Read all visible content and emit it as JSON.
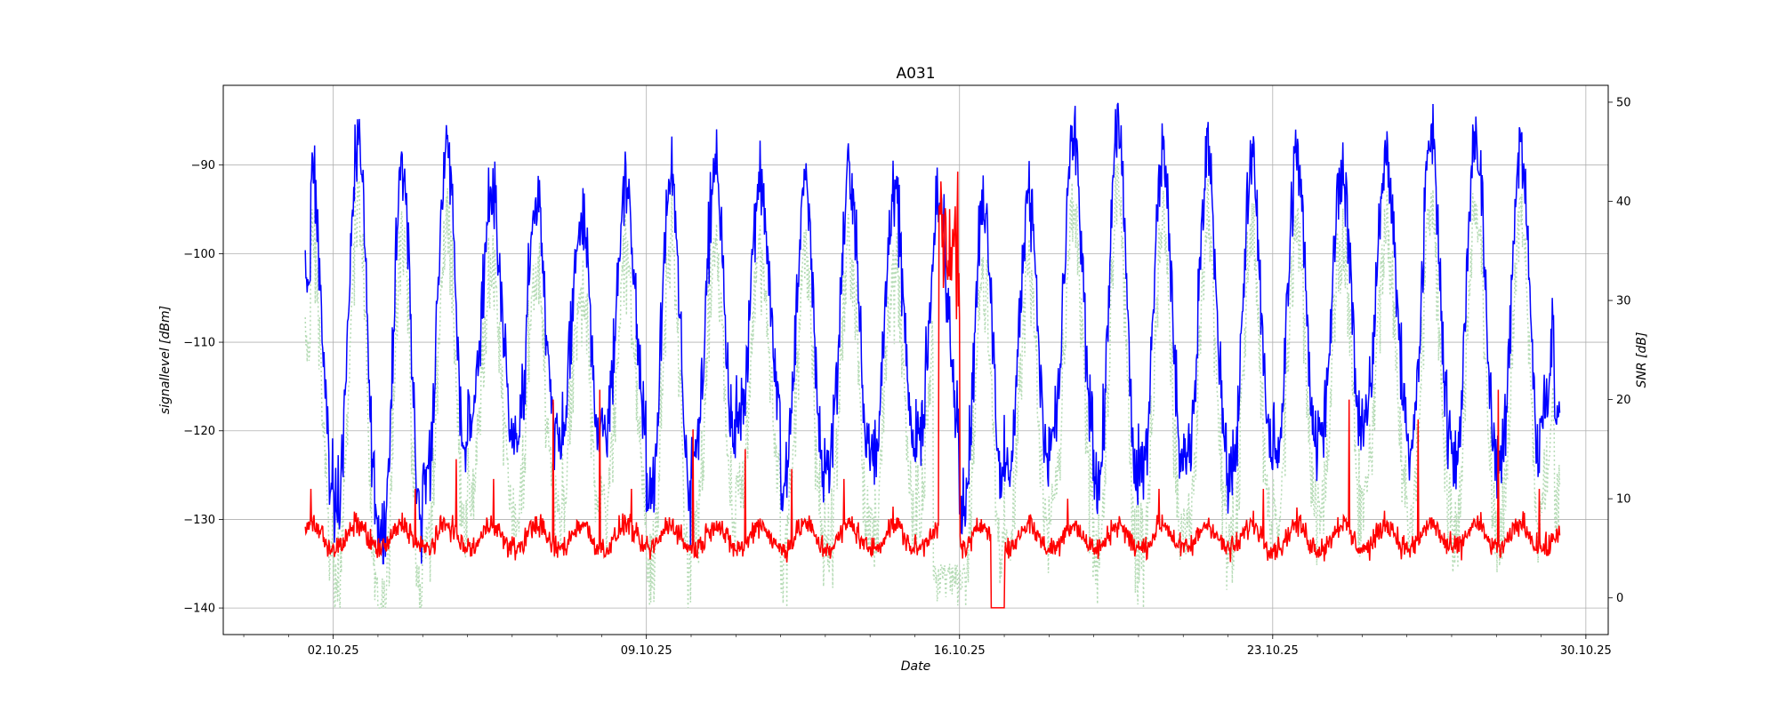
{
  "chart_data": {
    "type": "line",
    "title": "A031",
    "xlabel": "Date",
    "ylabel_left": "signallevel [dBm]",
    "ylabel_right": "SNR [dB]",
    "x_tick_labels": [
      "02.10.25",
      "09.10.25",
      "16.10.25",
      "23.10.25",
      "30.10.25"
    ],
    "x_range": [
      "2025-09-29T13:00",
      "2025-10-30T12:00"
    ],
    "left_ylim": [
      -143,
      -81
    ],
    "left_yticks": [
      -90,
      -100,
      -110,
      -120,
      -130,
      -140
    ],
    "right_ylim": [
      -3.7,
      51.7
    ],
    "right_yticks": [
      0,
      10,
      20,
      30,
      40,
      50
    ],
    "grid": true,
    "series": [
      {
        "axis": "left",
        "color": "#0000ff",
        "style": "solid",
        "x_start": "2025-10-01T09:00",
        "x_end": "2025-10-29T10:00",
        "daily_peak": [
          -92,
          -88,
          -90,
          -88,
          -93,
          -94,
          -96,
          -92,
          -91,
          -90,
          -91,
          -92,
          -91,
          -93,
          -94,
          -95,
          -93,
          -87,
          -86,
          -88,
          -89,
          -90,
          -89,
          -90,
          -88,
          -87,
          -86,
          -88,
          -90
        ],
        "daily_low": [
          -126,
          -128,
          -132,
          -125,
          -118,
          -122,
          -121,
          -120,
          -128,
          -122,
          -118,
          -126,
          -123,
          -122,
          -120,
          -128,
          -124,
          -121,
          -126,
          -124,
          -123,
          -124,
          -122,
          -120,
          -118,
          -122,
          -123,
          -124,
          -118
        ],
        "start_value": -103,
        "end_value": -118
      },
      {
        "axis": "right",
        "color": "#ff0000",
        "style": "solid",
        "x_start": "2025-10-01T09:00",
        "x_end": "2025-10-29T10:00",
        "baseline_range": [
          3,
          8
        ],
        "spikes": [
          {
            "date": "2025-10-01T12:00",
            "value": 11
          },
          {
            "date": "2025-10-03T20:00",
            "value": 11
          },
          {
            "date": "2025-10-04T18:00",
            "value": 14
          },
          {
            "date": "2025-10-05T14:00",
            "value": 12
          },
          {
            "date": "2025-10-06T22:00",
            "value": 20
          },
          {
            "date": "2025-10-07T23:00",
            "value": 21
          },
          {
            "date": "2025-10-08T16:00",
            "value": 11
          },
          {
            "date": "2025-10-10T01:00",
            "value": 17
          },
          {
            "date": "2025-10-11T05:00",
            "value": 15
          },
          {
            "date": "2025-10-12T06:00",
            "value": 13
          },
          {
            "date": "2025-10-13T10:00",
            "value": 12
          },
          {
            "date": "2025-10-15T14:00",
            "value": 42
          },
          {
            "date": "2025-10-15T23:00",
            "value": 43
          },
          {
            "date": "2025-10-18T10:00",
            "value": 10
          },
          {
            "date": "2025-10-20T11:00",
            "value": 11
          },
          {
            "date": "2025-10-22T19:00",
            "value": 11
          },
          {
            "date": "2025-10-24T17:00",
            "value": 20
          },
          {
            "date": "2025-10-26T06:00",
            "value": 18
          },
          {
            "date": "2025-10-28T01:00",
            "value": 21
          },
          {
            "date": "2025-10-28T23:00",
            "value": 11
          }
        ],
        "dropouts": [
          {
            "start": "2025-10-16T17:00",
            "end": "2025-10-17T00:00",
            "value": -1
          }
        ],
        "high_plateau": {
          "start": "2025-10-15T13:00",
          "end": "2025-10-16T00:00",
          "range": [
            28,
            40
          ]
        }
      },
      {
        "axis": "left",
        "color": "#b5dbb5",
        "style": "dotted",
        "x_start": "2025-10-01T09:00",
        "x_end": "2025-10-29T10:00",
        "min_value": -140,
        "max_value": -84
      }
    ]
  }
}
